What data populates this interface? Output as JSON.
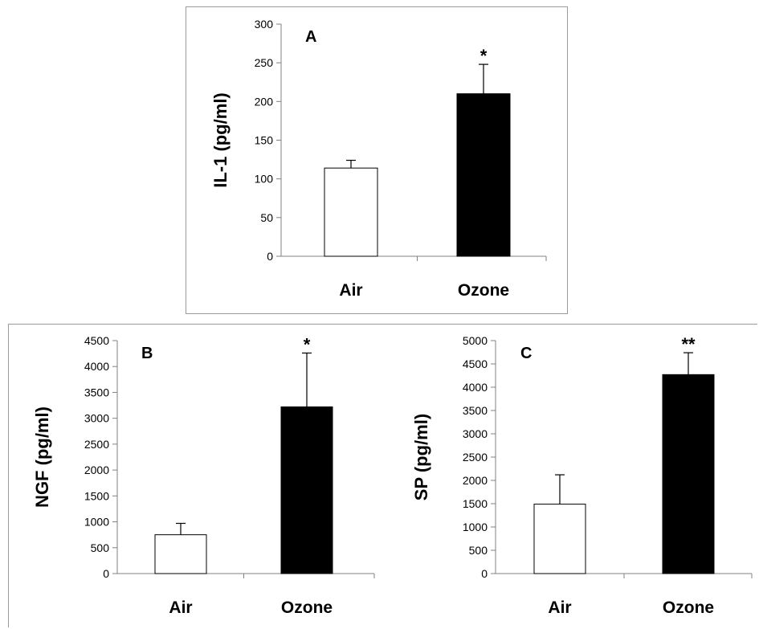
{
  "chart_data": [
    {
      "type": "bar",
      "panel_label": "A",
      "ylabel": "IL-1  (pg/ml)",
      "categories": [
        "Air",
        "Ozone"
      ],
      "values": [
        114,
        210
      ],
      "errors": [
        10,
        38
      ],
      "bar_colors": [
        "#ffffff",
        "#000000"
      ],
      "significance": [
        "",
        "*"
      ],
      "ylim": [
        0,
        300
      ],
      "yticks": [
        "0",
        "50",
        "100",
        "150",
        "200",
        "250",
        "300"
      ],
      "ytick_values": [
        0,
        50,
        100,
        150,
        200,
        250,
        300
      ]
    },
    {
      "type": "bar",
      "panel_label": "B",
      "ylabel": "NGF (pg/ml)",
      "categories": [
        "Air",
        "Ozone"
      ],
      "values": [
        750,
        3220
      ],
      "errors": [
        220,
        1040
      ],
      "bar_colors": [
        "#ffffff",
        "#000000"
      ],
      "significance": [
        "",
        "*"
      ],
      "ylim": [
        0,
        4500
      ],
      "yticks": [
        "0",
        "500",
        "1000",
        "1500",
        "2000",
        "2500",
        "3000",
        "3500",
        "4000",
        "4500"
      ],
      "ytick_values": [
        0,
        500,
        1000,
        1500,
        2000,
        2500,
        3000,
        3500,
        4000,
        4500
      ]
    },
    {
      "type": "bar",
      "panel_label": "C",
      "ylabel": "SP (pg/ml)",
      "categories": [
        "Air",
        "Ozone"
      ],
      "values": [
        1490,
        4270
      ],
      "errors": [
        630,
        470
      ],
      "bar_colors": [
        "#ffffff",
        "#000000"
      ],
      "significance": [
        "",
        "**"
      ],
      "ylim": [
        0,
        5000
      ],
      "yticks": [
        "0",
        "500",
        "1000",
        "1500",
        "2000",
        "2500",
        "3000",
        "3500",
        "4000",
        "4500",
        "5000"
      ],
      "ytick_values": [
        0,
        500,
        1000,
        1500,
        2000,
        2500,
        3000,
        3500,
        4000,
        4500,
        5000
      ]
    }
  ]
}
